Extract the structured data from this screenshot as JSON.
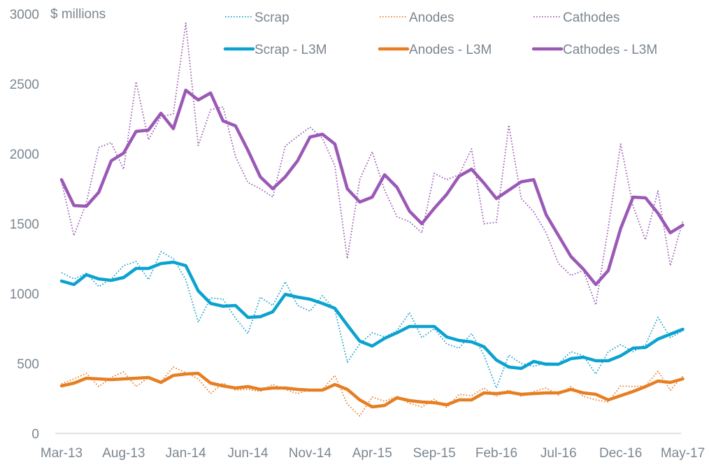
{
  "chart_data": {
    "type": "line",
    "title": "",
    "ylabel": "$ millions",
    "xlabel": "",
    "ylim": [
      0,
      3000
    ],
    "yticks": [
      0,
      500,
      1000,
      1500,
      2000,
      2500,
      3000
    ],
    "ytick_labels": [
      "0",
      "500",
      "1000",
      "1500",
      "2000",
      "2500",
      "3000"
    ],
    "grid": false,
    "legend_position": "top-right",
    "x_start": "Mar-13",
    "x_end": "May-17",
    "x_count": 51,
    "xtick_every": 5,
    "xtick_labels": [
      "Mar-13",
      "Aug-13",
      "Jan-14",
      "Jun-14",
      "Nov-14",
      "Apr-15",
      "Sep-15",
      "Feb-16",
      "Jul-16",
      "Dec-16",
      "May-17"
    ],
    "series": [
      {
        "name": "Scrap",
        "style": "dotted",
        "color": "#1aa3cf",
        "values": [
          1150,
          1105,
          1145,
          1050,
          1105,
          1200,
          1230,
          1100,
          1300,
          1250,
          1100,
          795,
          970,
          960,
          825,
          715,
          975,
          915,
          1085,
          915,
          875,
          985,
          885,
          510,
          640,
          720,
          690,
          735,
          865,
          685,
          750,
          640,
          610,
          715,
          560,
          325,
          560,
          500,
          480,
          505,
          500,
          585,
          555,
          425,
          585,
          635,
          585,
          635,
          830,
          685,
          735
        ]
      },
      {
        "name": "Anodes",
        "style": "dotted",
        "color": "#e8802a",
        "values": [
          355,
          390,
          430,
          335,
          400,
          440,
          335,
          400,
          370,
          475,
          435,
          390,
          285,
          360,
          310,
          315,
          300,
          350,
          315,
          285,
          315,
          315,
          415,
          210,
          125,
          260,
          230,
          265,
          215,
          190,
          245,
          185,
          280,
          270,
          325,
          265,
          310,
          265,
          300,
          325,
          275,
          335,
          265,
          240,
          225,
          340,
          335,
          340,
          445,
          310,
          410
        ]
      },
      {
        "name": "Cathodes",
        "style": "dotted",
        "color": "#9b5cb4",
        "values": [
          1800,
          1415,
          1650,
          2045,
          2080,
          1890,
          2515,
          2100,
          2265,
          2285,
          2935,
          2060,
          2315,
          2335,
          1980,
          1795,
          1750,
          1690,
          2055,
          2125,
          2190,
          2110,
          1915,
          1250,
          1815,
          2015,
          1740,
          1550,
          1515,
          1435,
          1860,
          1815,
          1850,
          2035,
          1500,
          1510,
          2205,
          1680,
          1585,
          1435,
          1215,
          1130,
          1165,
          920,
          1470,
          2070,
          1625,
          1385,
          1735,
          1200,
          1520
        ]
      },
      {
        "name": "Scrap - L3M",
        "style": "solid",
        "color": "#0ba2d0",
        "values": [
          1090,
          1065,
          1135,
          1105,
          1095,
          1115,
          1180,
          1180,
          1215,
          1225,
          1200,
          1020,
          930,
          910,
          915,
          830,
          835,
          870,
          995,
          975,
          960,
          930,
          895,
          775,
          660,
          625,
          680,
          720,
          765,
          765,
          765,
          690,
          665,
          655,
          620,
          525,
          475,
          465,
          515,
          495,
          495,
          535,
          545,
          520,
          520,
          555,
          610,
          615,
          675,
          710,
          745
        ]
      },
      {
        "name": "Anodes - L3M",
        "style": "solid",
        "color": "#e67e22",
        "values": [
          340,
          360,
          395,
          390,
          385,
          390,
          395,
          400,
          365,
          415,
          425,
          430,
          360,
          340,
          325,
          335,
          315,
          325,
          325,
          315,
          310,
          310,
          350,
          315,
          240,
          190,
          200,
          255,
          235,
          225,
          220,
          205,
          240,
          240,
          290,
          285,
          295,
          280,
          285,
          290,
          290,
          315,
          290,
          280,
          240,
          270,
          300,
          335,
          375,
          365,
          390
        ]
      },
      {
        "name": "Cathodes - L3M",
        "style": "solid",
        "color": "#9b59b6",
        "values": [
          1815,
          1630,
          1625,
          1725,
          1950,
          2005,
          2160,
          2170,
          2290,
          2180,
          2455,
          2385,
          2435,
          2235,
          2200,
          2025,
          1835,
          1750,
          1835,
          1950,
          2120,
          2140,
          2070,
          1750,
          1655,
          1690,
          1850,
          1760,
          1590,
          1500,
          1610,
          1710,
          1840,
          1890,
          1790,
          1680,
          1740,
          1800,
          1815,
          1565,
          1415,
          1265,
          1175,
          1065,
          1165,
          1465,
          1690,
          1685,
          1575,
          1435,
          1490
        ]
      }
    ]
  }
}
